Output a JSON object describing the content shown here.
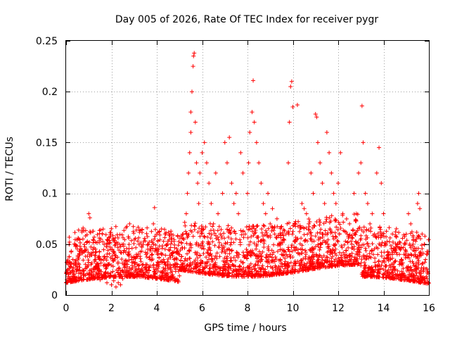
{
  "chart_data": {
    "type": "scatter",
    "title": "Day 005 of 2026, Rate Of TEC Index for receiver pygr",
    "xlabel": "GPS time / hours",
    "ylabel": "ROTI / TECUs",
    "xlim": [
      0,
      16
    ],
    "ylim": [
      0,
      0.25
    ],
    "x_ticks": [
      0,
      2,
      4,
      6,
      8,
      10,
      12,
      14,
      16
    ],
    "x_tick_labels": [
      "0",
      "2",
      "4",
      "6",
      "8",
      "10",
      "12",
      "14",
      "16"
    ],
    "y_ticks": [
      0,
      0.05,
      0.1,
      0.15,
      0.2,
      0.25
    ],
    "y_tick_labels": [
      "0",
      "0.05",
      "0.1",
      "0.15",
      "0.2",
      "0.25"
    ],
    "grid": true,
    "marker": "plus",
    "series": [
      {
        "name": "ROTI",
        "color": "#ff0000",
        "points": [
          [
            0.0,
            0.012
          ],
          [
            0.1,
            0.03
          ],
          [
            0.15,
            0.052
          ],
          [
            0.2,
            0.022
          ],
          [
            0.3,
            0.035
          ],
          [
            0.4,
            0.018
          ],
          [
            0.5,
            0.028
          ],
          [
            0.6,
            0.04
          ],
          [
            0.7,
            0.062
          ],
          [
            0.75,
            0.066
          ],
          [
            0.8,
            0.02
          ],
          [
            0.9,
            0.045
          ],
          [
            1.0,
            0.08
          ],
          [
            1.05,
            0.076
          ],
          [
            1.1,
            0.03
          ],
          [
            1.2,
            0.042
          ],
          [
            1.3,
            0.042
          ],
          [
            1.4,
            0.025
          ],
          [
            1.5,
            0.015
          ],
          [
            1.6,
            0.06
          ],
          [
            1.7,
            0.02
          ],
          [
            1.8,
            0.012
          ],
          [
            1.9,
            0.018
          ],
          [
            2.0,
            0.01
          ],
          [
            2.1,
            0.014
          ],
          [
            2.2,
            0.008
          ],
          [
            2.3,
            0.012
          ],
          [
            2.4,
            0.01
          ],
          [
            2.5,
            0.016
          ],
          [
            2.6,
            0.022
          ],
          [
            2.7,
            0.03
          ],
          [
            2.8,
            0.07
          ],
          [
            2.9,
            0.035
          ],
          [
            3.0,
            0.02
          ],
          [
            3.1,
            0.04
          ],
          [
            3.2,
            0.025
          ],
          [
            3.3,
            0.018
          ],
          [
            3.4,
            0.03
          ],
          [
            3.5,
            0.042
          ],
          [
            3.6,
            0.045
          ],
          [
            3.7,
            0.035
          ],
          [
            3.8,
            0.04
          ],
          [
            3.85,
            0.07
          ],
          [
            3.9,
            0.086
          ],
          [
            4.0,
            0.045
          ],
          [
            4.1,
            0.03
          ],
          [
            4.2,
            0.04
          ],
          [
            4.3,
            0.035
          ],
          [
            4.4,
            0.06
          ],
          [
            4.5,
            0.03
          ],
          [
            4.6,
            0.025
          ],
          [
            4.7,
            0.02
          ],
          [
            4.8,
            0.035
          ],
          [
            4.9,
            0.03
          ],
          [
            5.0,
            0.04
          ],
          [
            5.1,
            0.038
          ],
          [
            5.2,
            0.055
          ],
          [
            5.25,
            0.068
          ],
          [
            5.3,
            0.08
          ],
          [
            5.35,
            0.1
          ],
          [
            5.4,
            0.12
          ],
          [
            5.45,
            0.14
          ],
          [
            5.5,
            0.16
          ],
          [
            5.5,
            0.18
          ],
          [
            5.55,
            0.2
          ],
          [
            5.6,
            0.225
          ],
          [
            5.62,
            0.235
          ],
          [
            5.65,
            0.238
          ],
          [
            5.7,
            0.17
          ],
          [
            5.75,
            0.13
          ],
          [
            5.8,
            0.11
          ],
          [
            5.85,
            0.09
          ],
          [
            5.9,
            0.12
          ],
          [
            6.0,
            0.14
          ],
          [
            6.1,
            0.15
          ],
          [
            6.2,
            0.13
          ],
          [
            6.3,
            0.11
          ],
          [
            6.4,
            0.09
          ],
          [
            6.5,
            0.07
          ],
          [
            6.6,
            0.12
          ],
          [
            6.7,
            0.08
          ],
          [
            6.8,
            0.06
          ],
          [
            6.9,
            0.1
          ],
          [
            7.0,
            0.15
          ],
          [
            7.1,
            0.13
          ],
          [
            7.2,
            0.155
          ],
          [
            7.3,
            0.11
          ],
          [
            7.4,
            0.09
          ],
          [
            7.5,
            0.1
          ],
          [
            7.6,
            0.08
          ],
          [
            7.7,
            0.14
          ],
          [
            7.8,
            0.12
          ],
          [
            7.9,
            0.06
          ],
          [
            8.0,
            0.1
          ],
          [
            8.05,
            0.13
          ],
          [
            8.1,
            0.16
          ],
          [
            8.2,
            0.18
          ],
          [
            8.25,
            0.211
          ],
          [
            8.3,
            0.17
          ],
          [
            8.4,
            0.15
          ],
          [
            8.5,
            0.13
          ],
          [
            8.6,
            0.11
          ],
          [
            8.7,
            0.09
          ],
          [
            8.8,
            0.08
          ],
          [
            8.9,
            0.1
          ],
          [
            9.0,
            0.07
          ],
          [
            9.1,
            0.085
          ],
          [
            9.2,
            0.06
          ],
          [
            9.3,
            0.075
          ],
          [
            9.4,
            0.05
          ],
          [
            9.5,
            0.04
          ],
          [
            9.6,
            0.055
          ],
          [
            9.7,
            0.06
          ],
          [
            9.8,
            0.13
          ],
          [
            9.85,
            0.17
          ],
          [
            9.9,
            0.205
          ],
          [
            9.95,
            0.21
          ],
          [
            10.0,
            0.185
          ],
          [
            10.1,
            0.07
          ],
          [
            10.2,
            0.187
          ],
          [
            10.3,
            0.04
          ],
          [
            10.4,
            0.09
          ],
          [
            10.5,
            0.085
          ],
          [
            10.6,
            0.08
          ],
          [
            10.7,
            0.07
          ],
          [
            10.8,
            0.12
          ],
          [
            10.9,
            0.1
          ],
          [
            11.0,
            0.178
          ],
          [
            11.05,
            0.175
          ],
          [
            11.1,
            0.15
          ],
          [
            11.2,
            0.13
          ],
          [
            11.3,
            0.11
          ],
          [
            11.4,
            0.09
          ],
          [
            11.5,
            0.16
          ],
          [
            11.6,
            0.14
          ],
          [
            11.7,
            0.12
          ],
          [
            11.8,
            0.1
          ],
          [
            11.9,
            0.09
          ],
          [
            12.0,
            0.11
          ],
          [
            12.1,
            0.14
          ],
          [
            12.2,
            0.08
          ],
          [
            12.3,
            0.04
          ],
          [
            12.4,
            0.06
          ],
          [
            12.5,
            0.07
          ],
          [
            12.6,
            0.05
          ],
          [
            12.7,
            0.1
          ],
          [
            12.8,
            0.08
          ],
          [
            12.9,
            0.12
          ],
          [
            13.0,
            0.13
          ],
          [
            13.05,
            0.186
          ],
          [
            13.1,
            0.15
          ],
          [
            13.2,
            0.1
          ],
          [
            13.3,
            0.09
          ],
          [
            13.4,
            0.07
          ],
          [
            13.5,
            0.08
          ],
          [
            13.6,
            0.06
          ],
          [
            13.7,
            0.12
          ],
          [
            13.8,
            0.145
          ],
          [
            13.9,
            0.11
          ],
          [
            14.0,
            0.08
          ],
          [
            14.1,
            0.05
          ],
          [
            14.2,
            0.04
          ],
          [
            14.3,
            0.035
          ],
          [
            14.4,
            0.03
          ],
          [
            14.5,
            0.045
          ],
          [
            14.6,
            0.04
          ],
          [
            14.7,
            0.03
          ],
          [
            14.8,
            0.035
          ],
          [
            14.9,
            0.04
          ],
          [
            15.0,
            0.06
          ],
          [
            15.1,
            0.08
          ],
          [
            15.2,
            0.07
          ],
          [
            15.3,
            0.05
          ],
          [
            15.4,
            0.04
          ],
          [
            15.5,
            0.09
          ],
          [
            15.55,
            0.1
          ],
          [
            15.6,
            0.085
          ],
          [
            15.7,
            0.06
          ],
          [
            15.8,
            0.05
          ],
          [
            15.9,
            0.04
          ]
        ]
      }
    ]
  }
}
